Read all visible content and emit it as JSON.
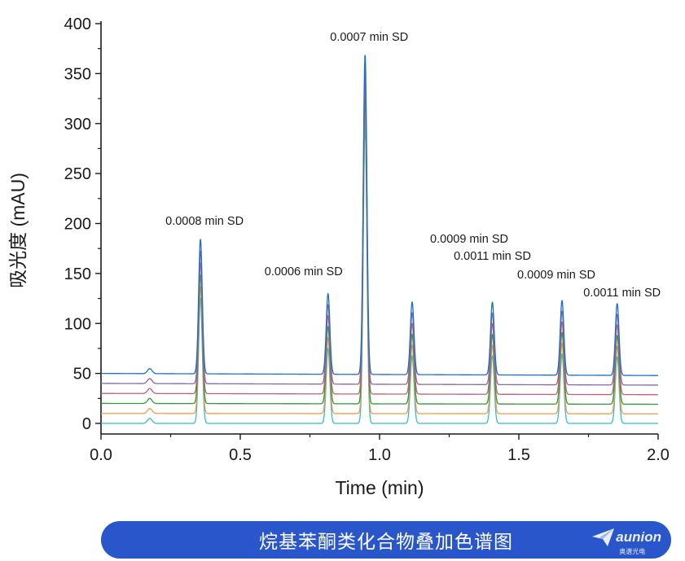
{
  "chart_data": {
    "type": "line",
    "xlabel": "Time (min)",
    "ylabel": "吸光度 (mAU)",
    "xlim": [
      0.0,
      2.0
    ],
    "ylim": [
      -10,
      400
    ],
    "x_ticks": [
      "0.0",
      "0.5",
      "1.0",
      "1.5",
      "2.0"
    ],
    "y_ticks": [
      "0",
      "50",
      "100",
      "150",
      "200",
      "250",
      "300",
      "350",
      "400"
    ],
    "grid": false,
    "legend": "none",
    "series_count": 6,
    "series_offsets": [
      0,
      10,
      20,
      30,
      40,
      50
    ],
    "series_colors": [
      "#33bccc",
      "#f29b4b",
      "#2e9a3c",
      "#c0607c",
      "#8a66aa",
      "#1f6fc2"
    ],
    "injection_bump": {
      "time": 0.175,
      "height": 5
    },
    "peaks": [
      {
        "time": 0.357,
        "height": 135,
        "annotation": "0.0008 min SD"
      },
      {
        "time": 0.815,
        "height": 81,
        "annotation": "0.0006 min SD"
      },
      {
        "time": 0.948,
        "height": 321,
        "annotation": "0.0007 min SD"
      },
      {
        "time": 1.117,
        "height": 73,
        "annotation": "0.0009 min SD"
      },
      {
        "time": 1.405,
        "height": 73,
        "annotation": "0.0011 min SD"
      },
      {
        "time": 1.655,
        "height": 75,
        "annotation": "0.0009 min SD"
      },
      {
        "time": 1.853,
        "height": 72,
        "annotation": "0.0011 min SD"
      }
    ]
  },
  "caption": "烷基苯酮类化合物叠加色谱图",
  "logo": {
    "word": "aunion",
    "sub": "奥谱光电",
    "icon": "paper-plane-icon"
  }
}
